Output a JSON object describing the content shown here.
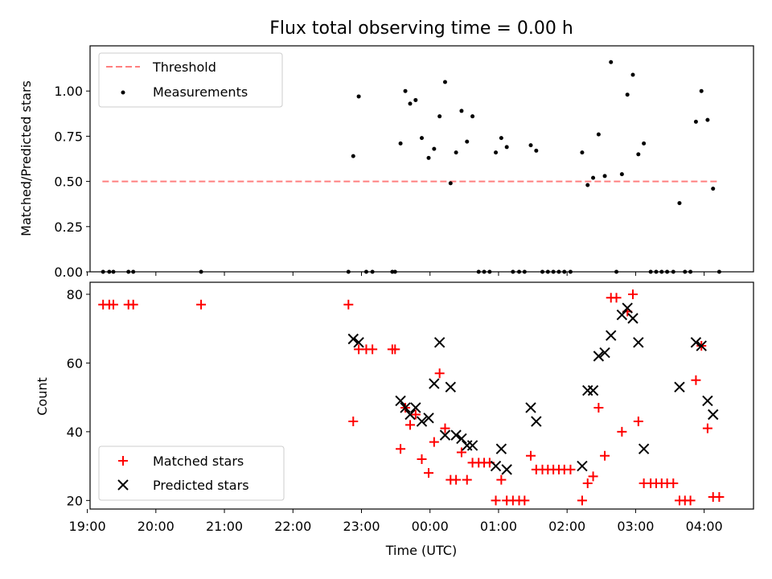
{
  "chart_data": [
    {
      "type": "scatter",
      "title": "Flux total observing time = 0.00 h",
      "ylabel": "Matched/Predicted stars",
      "xlabel": "",
      "xlim": [
        19.04,
        28.72
      ],
      "ylim": [
        0.0,
        1.25
      ],
      "yticks": [
        0.0,
        0.25,
        0.5,
        0.75,
        1.0
      ],
      "ytick_labels": [
        "0.00",
        "0.25",
        "0.50",
        "0.75",
        "1.00"
      ],
      "legend": {
        "position": "top-left",
        "entries": [
          {
            "label": "Threshold",
            "marker": "dashed-line",
            "color": "#ff7f7f"
          },
          {
            "label": "Measurements",
            "marker": "dot",
            "color": "#000000"
          }
        ]
      },
      "threshold": {
        "value": 0.5,
        "x_start": 19.22,
        "x_end": 28.22,
        "color": "#ff7f7f"
      },
      "series": [
        {
          "name": "Measurements",
          "color": "#000000",
          "points": [
            [
              19.23,
              0.0
            ],
            [
              19.32,
              0.0
            ],
            [
              19.38,
              0.0
            ],
            [
              19.6,
              0.0
            ],
            [
              19.67,
              0.0
            ],
            [
              20.66,
              0.0
            ],
            [
              22.81,
              0.0
            ],
            [
              22.88,
              0.64
            ],
            [
              22.96,
              0.97
            ],
            [
              23.07,
              0.0
            ],
            [
              23.16,
              0.0
            ],
            [
              23.45,
              0.0
            ],
            [
              23.49,
              0.0
            ],
            [
              23.57,
              0.71
            ],
            [
              23.64,
              1.0
            ],
            [
              23.71,
              0.93
            ],
            [
              23.79,
              0.95
            ],
            [
              23.88,
              0.74
            ],
            [
              23.98,
              0.63
            ],
            [
              24.06,
              0.68
            ],
            [
              24.14,
              0.86
            ],
            [
              24.22,
              1.05
            ],
            [
              24.3,
              0.49
            ],
            [
              24.38,
              0.66
            ],
            [
              24.46,
              0.89
            ],
            [
              24.54,
              0.72
            ],
            [
              24.62,
              0.86
            ],
            [
              24.71,
              0.0
            ],
            [
              24.79,
              0.0
            ],
            [
              24.87,
              0.0
            ],
            [
              24.96,
              0.66
            ],
            [
              25.04,
              0.74
            ],
            [
              25.12,
              0.69
            ],
            [
              25.21,
              0.0
            ],
            [
              25.3,
              0.0
            ],
            [
              25.38,
              0.0
            ],
            [
              25.47,
              0.7
            ],
            [
              25.55,
              0.67
            ],
            [
              25.64,
              0.0
            ],
            [
              25.72,
              0.0
            ],
            [
              25.8,
              0.0
            ],
            [
              25.88,
              0.0
            ],
            [
              25.96,
              0.0
            ],
            [
              26.05,
              0.0
            ],
            [
              26.22,
              0.66
            ],
            [
              26.3,
              0.48
            ],
            [
              26.38,
              0.52
            ],
            [
              26.46,
              0.76
            ],
            [
              26.55,
              0.53
            ],
            [
              26.64,
              1.16
            ],
            [
              26.72,
              0.0
            ],
            [
              26.8,
              0.54
            ],
            [
              26.88,
              0.98
            ],
            [
              26.96,
              1.09
            ],
            [
              27.04,
              0.65
            ],
            [
              27.12,
              0.71
            ],
            [
              27.22,
              0.0
            ],
            [
              27.3,
              0.0
            ],
            [
              27.38,
              0.0
            ],
            [
              27.46,
              0.0
            ],
            [
              27.55,
              0.0
            ],
            [
              27.64,
              0.38
            ],
            [
              27.72,
              0.0
            ],
            [
              27.8,
              0.0
            ],
            [
              27.88,
              0.83
            ],
            [
              27.96,
              1.0
            ],
            [
              28.05,
              0.84
            ],
            [
              28.13,
              0.46
            ],
            [
              28.22,
              0.0
            ]
          ]
        }
      ]
    },
    {
      "type": "scatter",
      "title": "",
      "xlabel": "Time (UTC)",
      "ylabel": "Count",
      "xlim": [
        19.04,
        28.72
      ],
      "ylim": [
        17.5,
        83.5
      ],
      "yticks": [
        20,
        40,
        60,
        80
      ],
      "ytick_labels": [
        "20",
        "40",
        "60",
        "80"
      ],
      "xticks": [
        19,
        20,
        21,
        22,
        23,
        24,
        25,
        26,
        27,
        28
      ],
      "xtick_labels": [
        "19:00",
        "20:00",
        "21:00",
        "22:00",
        "23:00",
        "00:00",
        "01:00",
        "02:00",
        "03:00",
        "04:00"
      ],
      "legend": {
        "position": "bottom-left",
        "entries": [
          {
            "label": "Matched stars",
            "marker": "plus",
            "color": "#ff0000"
          },
          {
            "label": "Predicted stars",
            "marker": "x",
            "color": "#000000"
          }
        ]
      },
      "series": [
        {
          "name": "Matched stars",
          "marker": "plus",
          "color": "#ff0000",
          "points": [
            [
              19.23,
              77
            ],
            [
              19.32,
              77
            ],
            [
              19.38,
              77
            ],
            [
              19.6,
              77
            ],
            [
              19.67,
              77
            ],
            [
              20.66,
              77
            ],
            [
              22.81,
              77
            ],
            [
              22.88,
              43
            ],
            [
              22.96,
              64
            ],
            [
              23.07,
              64
            ],
            [
              23.16,
              64
            ],
            [
              23.45,
              64
            ],
            [
              23.49,
              64
            ],
            [
              23.57,
              35
            ],
            [
              23.64,
              47
            ],
            [
              23.71,
              42
            ],
            [
              23.79,
              45
            ],
            [
              23.88,
              32
            ],
            [
              23.98,
              28
            ],
            [
              24.06,
              37
            ],
            [
              24.14,
              57
            ],
            [
              24.22,
              41
            ],
            [
              24.3,
              26
            ],
            [
              24.38,
              26
            ],
            [
              24.46,
              34
            ],
            [
              24.54,
              26
            ],
            [
              24.62,
              31
            ],
            [
              24.71,
              31
            ],
            [
              24.79,
              31
            ],
            [
              24.87,
              31
            ],
            [
              24.96,
              20
            ],
            [
              25.04,
              26
            ],
            [
              25.12,
              20
            ],
            [
              25.21,
              20
            ],
            [
              25.3,
              20
            ],
            [
              25.38,
              20
            ],
            [
              25.47,
              33
            ],
            [
              25.55,
              29
            ],
            [
              25.64,
              29
            ],
            [
              25.72,
              29
            ],
            [
              25.8,
              29
            ],
            [
              25.88,
              29
            ],
            [
              25.96,
              29
            ],
            [
              26.05,
              29
            ],
            [
              26.22,
              20
            ],
            [
              26.3,
              25
            ],
            [
              26.38,
              27
            ],
            [
              26.46,
              47
            ],
            [
              26.55,
              33
            ],
            [
              26.64,
              79
            ],
            [
              26.72,
              79
            ],
            [
              26.8,
              40
            ],
            [
              26.88,
              75
            ],
            [
              26.96,
              80
            ],
            [
              27.04,
              43
            ],
            [
              27.12,
              25
            ],
            [
              27.22,
              25
            ],
            [
              27.3,
              25
            ],
            [
              27.38,
              25
            ],
            [
              27.46,
              25
            ],
            [
              27.55,
              25
            ],
            [
              27.64,
              20
            ],
            [
              27.72,
              20
            ],
            [
              27.8,
              20
            ],
            [
              27.88,
              55
            ],
            [
              27.96,
              65
            ],
            [
              28.05,
              41
            ],
            [
              28.13,
              21
            ],
            [
              28.22,
              21
            ]
          ]
        },
        {
          "name": "Predicted stars",
          "marker": "x",
          "color": "#000000",
          "points": [
            [
              22.88,
              67
            ],
            [
              22.96,
              66
            ],
            [
              23.57,
              49
            ],
            [
              23.64,
              47
            ],
            [
              23.71,
              45
            ],
            [
              23.79,
              47
            ],
            [
              23.88,
              43
            ],
            [
              23.98,
              44
            ],
            [
              24.06,
              54
            ],
            [
              24.14,
              66
            ],
            [
              24.22,
              39
            ],
            [
              24.3,
              53
            ],
            [
              24.38,
              39
            ],
            [
              24.46,
              38
            ],
            [
              24.54,
              36
            ],
            [
              24.62,
              36
            ],
            [
              24.96,
              30
            ],
            [
              25.04,
              35
            ],
            [
              25.12,
              29
            ],
            [
              25.47,
              47
            ],
            [
              25.55,
              43
            ],
            [
              26.22,
              30
            ],
            [
              26.3,
              52
            ],
            [
              26.38,
              52
            ],
            [
              26.46,
              62
            ],
            [
              26.55,
              63
            ],
            [
              26.64,
              68
            ],
            [
              26.8,
              74
            ],
            [
              26.88,
              76
            ],
            [
              26.96,
              73
            ],
            [
              27.04,
              66
            ],
            [
              27.12,
              35
            ],
            [
              27.64,
              53
            ],
            [
              27.88,
              66
            ],
            [
              27.96,
              65
            ],
            [
              28.05,
              49
            ],
            [
              28.13,
              45
            ]
          ]
        }
      ]
    }
  ]
}
